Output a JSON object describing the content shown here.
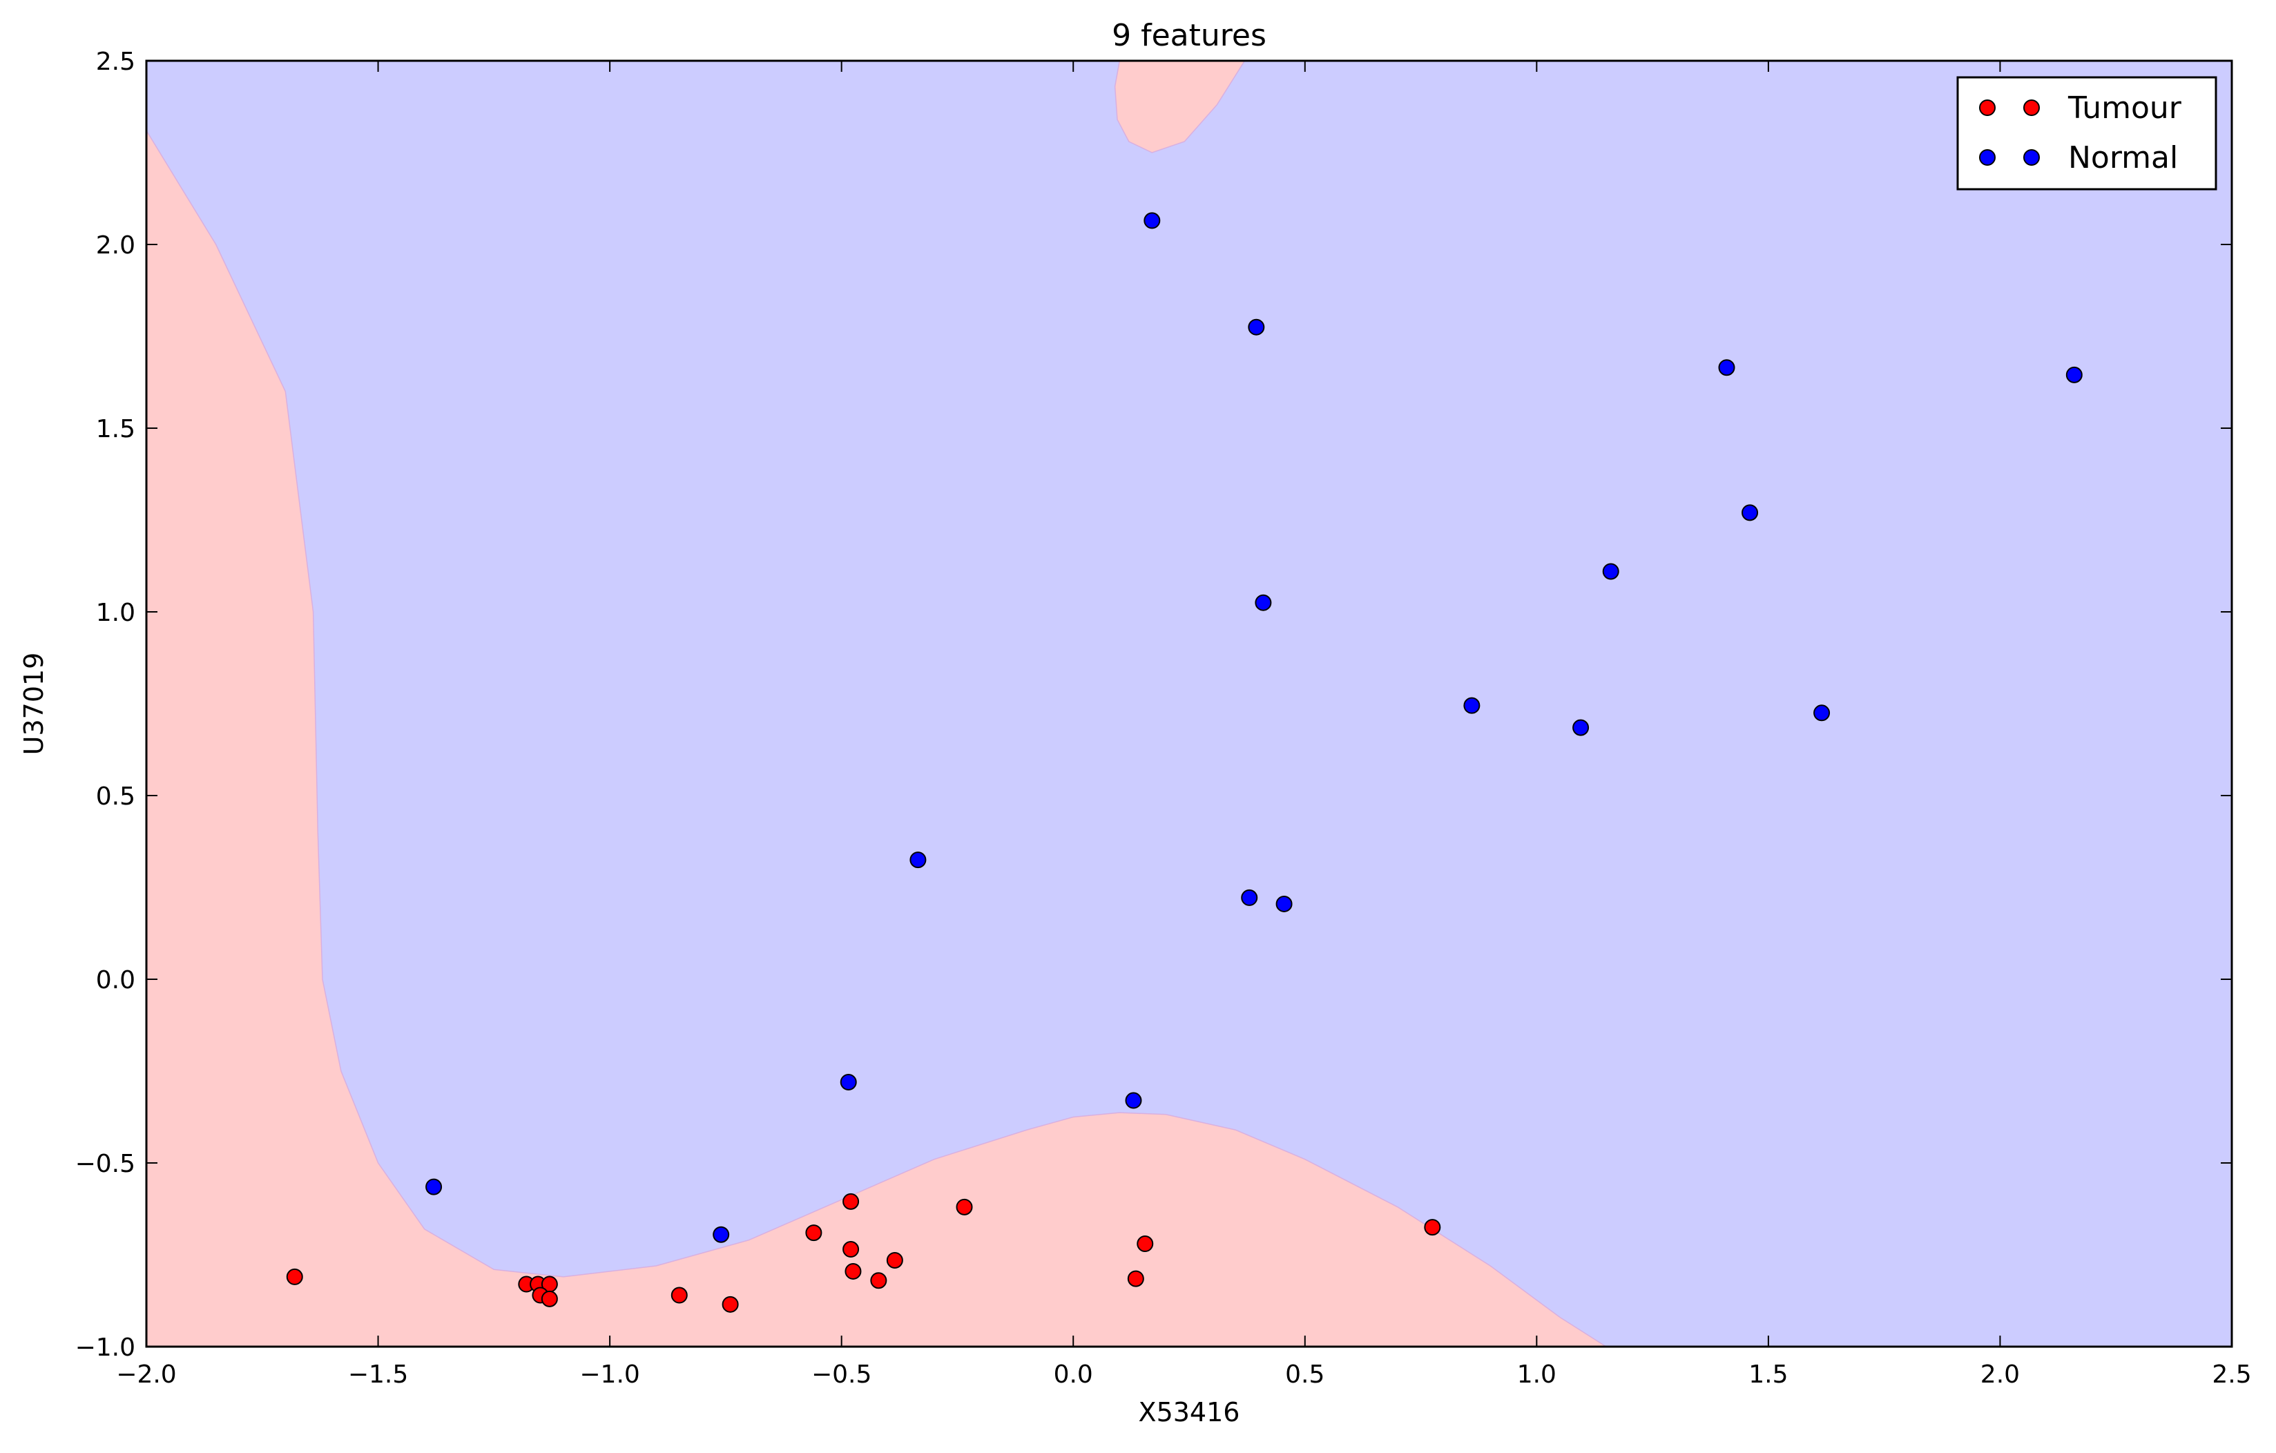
{
  "chart_data": {
    "type": "scatter",
    "title": "9 features",
    "xlabel": "X53416",
    "ylabel": "U37019",
    "xlim": [
      -2.0,
      2.5
    ],
    "ylim": [
      -1.0,
      2.5
    ],
    "xticks": [
      "−2.0",
      "−1.5",
      "−1.0",
      "−0.5",
      "0.0",
      "0.5",
      "1.0",
      "1.5",
      "2.0",
      "2.5"
    ],
    "yticks": [
      "−1.0",
      "−0.5",
      "0.0",
      "0.5",
      "1.0",
      "1.5",
      "2.0",
      "2.5"
    ],
    "grid": false,
    "legend_position": "top-right",
    "background_region": {
      "class": "Normal",
      "color": "#ccccff"
    },
    "decision_regions": [
      {
        "class": "Tumour",
        "color": "#ffcccc",
        "boundary": [
          [
            -2.0,
            2.31
          ],
          [
            -1.85,
            2.0
          ],
          [
            -1.7,
            1.6
          ],
          [
            -1.64,
            1.0
          ],
          [
            -1.63,
            0.4
          ],
          [
            -1.62,
            0.0
          ],
          [
            -1.58,
            -0.25
          ],
          [
            -1.5,
            -0.5
          ],
          [
            -1.4,
            -0.68
          ],
          [
            -1.25,
            -0.79
          ],
          [
            -1.1,
            -0.81
          ],
          [
            -0.9,
            -0.78
          ],
          [
            -0.7,
            -0.71
          ],
          [
            -0.5,
            -0.6
          ],
          [
            -0.3,
            -0.49
          ],
          [
            -0.1,
            -0.41
          ],
          [
            0.0,
            -0.375
          ],
          [
            0.1,
            -0.363
          ],
          [
            0.2,
            -0.368
          ],
          [
            0.35,
            -0.41
          ],
          [
            0.5,
            -0.49
          ],
          [
            0.7,
            -0.62
          ],
          [
            0.9,
            -0.78
          ],
          [
            1.05,
            -0.92
          ],
          [
            1.15,
            -1.0
          ],
          [
            -2.0,
            -1.0
          ]
        ]
      },
      {
        "class": "Tumour",
        "color": "#ffcccc",
        "boundary": [
          [
            0.1,
            2.5
          ],
          [
            0.09,
            2.43
          ],
          [
            0.095,
            2.34
          ],
          [
            0.12,
            2.28
          ],
          [
            0.17,
            2.25
          ],
          [
            0.24,
            2.28
          ],
          [
            0.31,
            2.38
          ],
          [
            0.37,
            2.5
          ]
        ]
      }
    ],
    "series": [
      {
        "name": "Tumour",
        "color": "#ff0000",
        "points": [
          [
            -1.68,
            -0.81
          ],
          [
            -1.18,
            -0.83
          ],
          [
            -1.155,
            -0.83
          ],
          [
            -1.13,
            -0.83
          ],
          [
            -1.15,
            -0.86
          ],
          [
            -1.13,
            -0.87
          ],
          [
            -0.85,
            -0.86
          ],
          [
            -0.74,
            -0.885
          ],
          [
            -0.56,
            -0.69
          ],
          [
            -0.48,
            -0.605
          ],
          [
            -0.48,
            -0.735
          ],
          [
            -0.475,
            -0.795
          ],
          [
            -0.42,
            -0.82
          ],
          [
            -0.385,
            -0.765
          ],
          [
            -0.235,
            -0.62
          ],
          [
            0.135,
            -0.815
          ],
          [
            0.155,
            -0.72
          ],
          [
            0.775,
            -0.675
          ]
        ]
      },
      {
        "name": "Normal",
        "color": "#0000ff",
        "points": [
          [
            -1.38,
            -0.565
          ],
          [
            -0.76,
            -0.695
          ],
          [
            -0.485,
            -0.28
          ],
          [
            -0.335,
            0.325
          ],
          [
            0.13,
            -0.33
          ],
          [
            0.17,
            2.065
          ],
          [
            0.395,
            1.775
          ],
          [
            0.38,
            0.222
          ],
          [
            0.41,
            1.025
          ],
          [
            0.455,
            0.205
          ],
          [
            0.86,
            0.745
          ],
          [
            1.095,
            0.685
          ],
          [
            1.16,
            1.11
          ],
          [
            1.41,
            1.665
          ],
          [
            1.46,
            1.27
          ],
          [
            1.615,
            0.725
          ],
          [
            2.16,
            1.645
          ]
        ]
      }
    ]
  }
}
